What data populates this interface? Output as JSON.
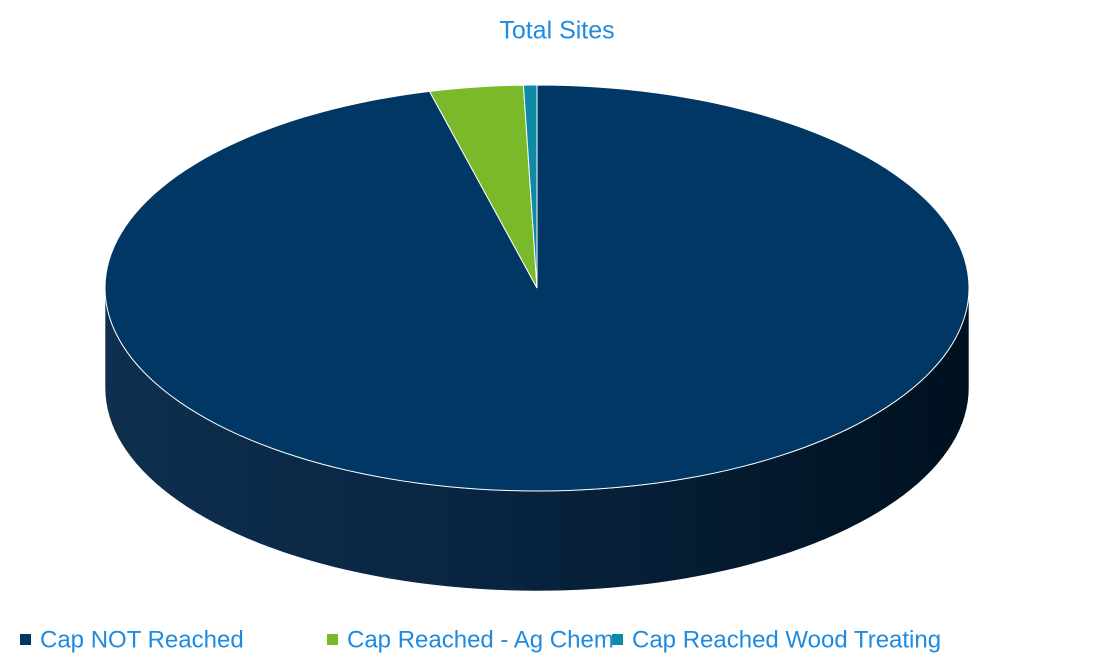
{
  "chart_data": {
    "type": "pie",
    "title": "Total Sites",
    "categories": [
      "Cap NOT Reached",
      "Cap Reached - Ag Chem",
      "Cap Reached Wood Treating"
    ],
    "values": [
      96,
      3.5,
      0.5
    ],
    "colors": [
      "#003764",
      "#7ab929",
      "#0e8aa6"
    ],
    "legend": "bottom"
  }
}
